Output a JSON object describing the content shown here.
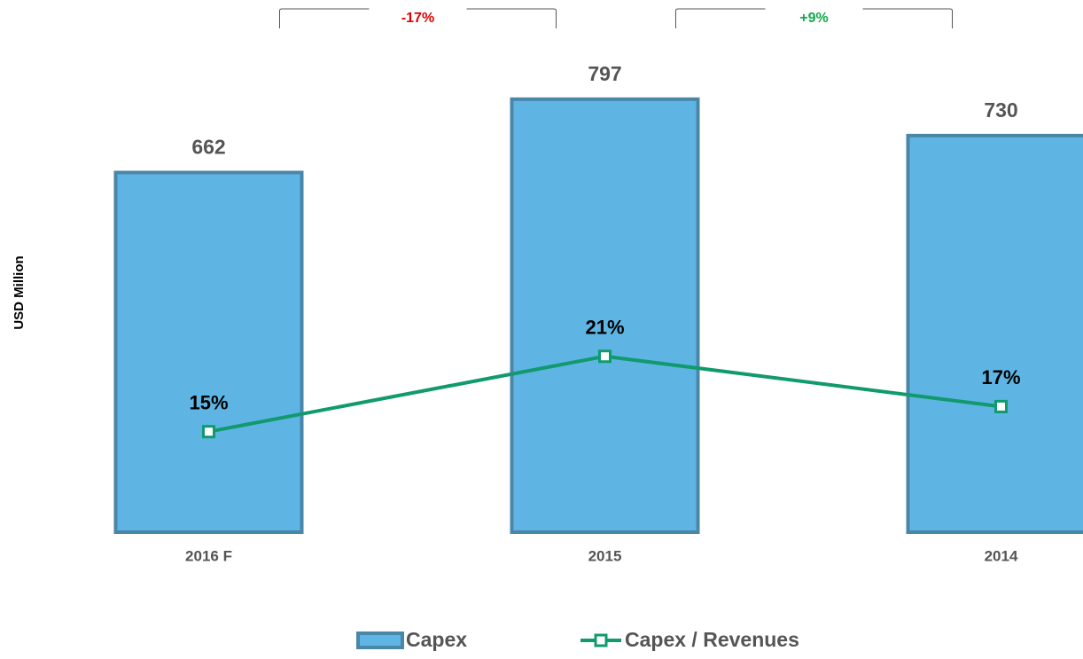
{
  "chart_data": {
    "type": "bar",
    "y_axis_label": "USD Million",
    "categories": [
      "2016 F",
      "2015",
      "2014"
    ],
    "series": [
      {
        "name": "Capex",
        "color": "#5eb5e3",
        "values": [
          662,
          797,
          730
        ]
      },
      {
        "name": "Capex / Revenues",
        "color": "#109a6e",
        "axis": "y2",
        "type": "line",
        "values": [
          15,
          21,
          17
        ],
        "value_labels": [
          "15%",
          "21%",
          "17%"
        ]
      }
    ],
    "annotations": [
      {
        "text": "-17%",
        "color": "#e00000"
      },
      {
        "text": "+9%",
        "color": "#10a84a"
      }
    ],
    "ylim": [
      0,
      800
    ],
    "y2lim": [
      7,
      41.6
    ],
    "legend": "bottom"
  }
}
